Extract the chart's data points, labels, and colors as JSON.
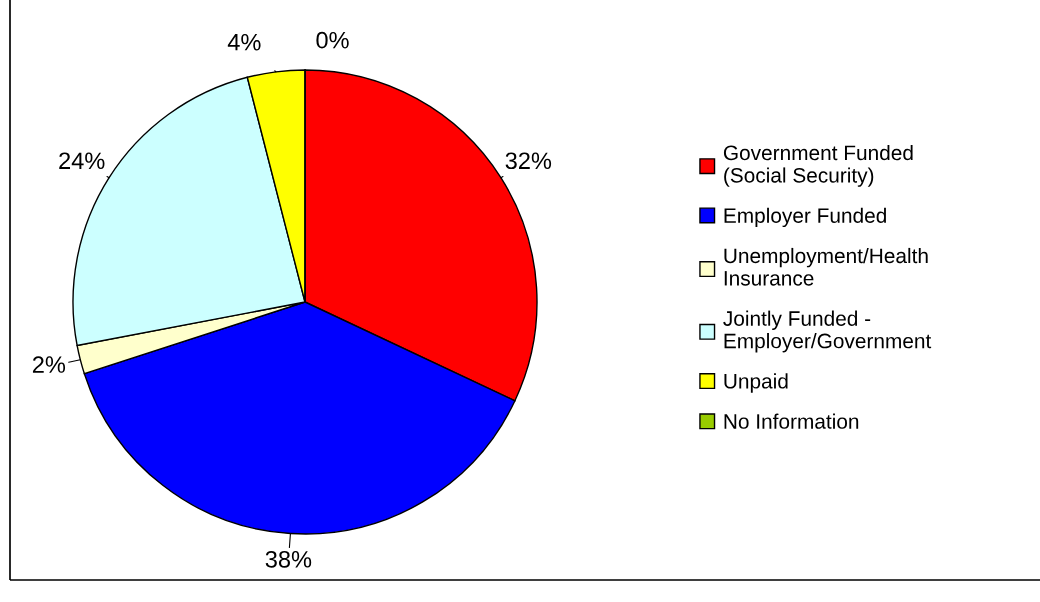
{
  "chart_data": {
    "type": "pie",
    "categories": [
      "Government Funded (Social Security)",
      "Employer Funded",
      "Unemployment/Health Insurance",
      "Jointly Funded - Employer/Government",
      "Unpaid",
      "No Information"
    ],
    "values": [
      32,
      38,
      2,
      24,
      4,
      0
    ],
    "colors": [
      "#ff0000",
      "#0000ff",
      "#ffffcc",
      "#ccffff",
      "#ffff00",
      "#99cc00"
    ],
    "value_labels": [
      "32%",
      "38%",
      "2%",
      "24%",
      "4%",
      "0%"
    ],
    "legend": "right"
  }
}
